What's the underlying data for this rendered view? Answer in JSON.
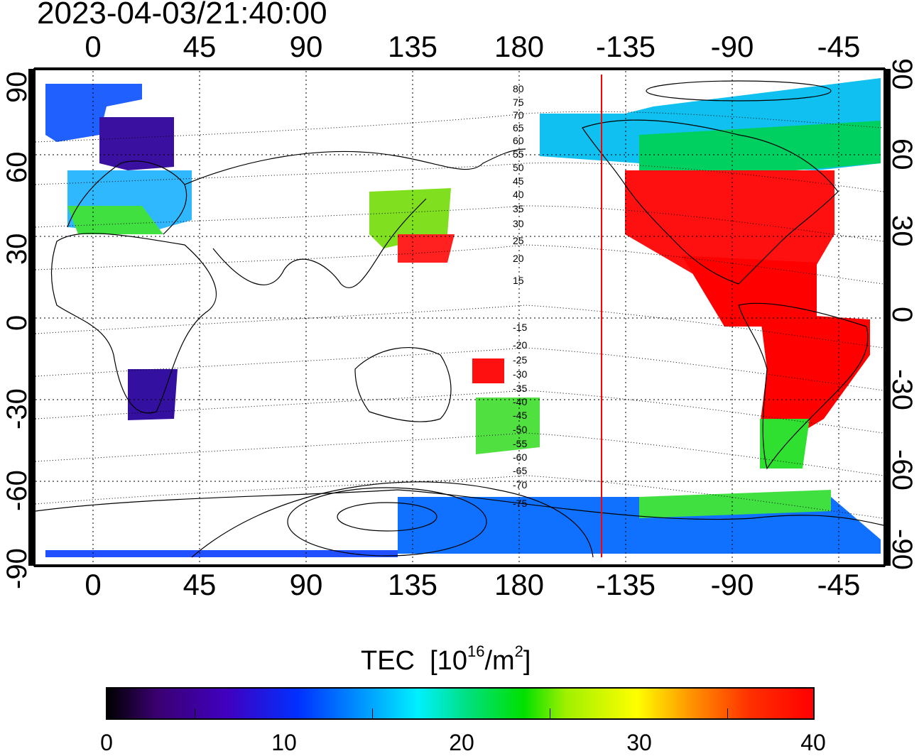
{
  "timestamp": "2023-04-03/21:40:00",
  "top_lon_labels": [
    "0",
    "45",
    "90",
    "135",
    "180",
    "-135",
    "-90",
    "-45"
  ],
  "bottom_lon_labels": [
    "0",
    "45",
    "90",
    "135",
    "180",
    "-135",
    "-90",
    "-45"
  ],
  "left_lat_labels": [
    "90",
    "60",
    "30",
    "0",
    "-30",
    "-60",
    "-90"
  ],
  "right_lat_labels": [
    "90",
    "60",
    "30",
    "0",
    "-30",
    "-60",
    "-90"
  ],
  "dip_contour_labels": [
    "80",
    "75",
    "70",
    "65",
    "60",
    "55",
    "50",
    "45",
    "40",
    "35",
    "30",
    "25",
    "20",
    "15",
    "-15",
    "-20",
    "-25",
    "-30",
    "-35",
    "-40",
    "-45",
    "-50",
    "-55",
    "-60",
    "-65",
    "-70",
    "-75"
  ],
  "colorbar": {
    "title": "TEC",
    "unit_prefix": "[10",
    "unit_exp": "16",
    "unit_mid": "/m",
    "unit_exp2": "2",
    "unit_suffix": "]",
    "tick_labels": [
      "0",
      "10",
      "20",
      "30",
      "40"
    ],
    "min": 0,
    "max": 40
  },
  "colors": {
    "terminator_line": "#ff0000",
    "high_tec": "#ff0000",
    "low_tec": "#2a0060"
  }
}
